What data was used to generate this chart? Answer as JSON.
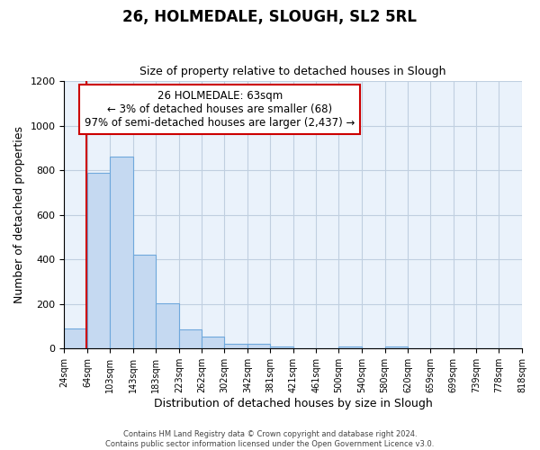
{
  "title1": "26, HOLMEDALE, SLOUGH, SL2 5RL",
  "title2": "Size of property relative to detached houses in Slough",
  "xlabel": "Distribution of detached houses by size in Slough",
  "ylabel": "Number of detached properties",
  "bar_values": [
    90,
    790,
    860,
    420,
    205,
    85,
    55,
    20,
    20,
    10,
    0,
    0,
    10,
    0,
    10,
    0,
    0,
    0,
    0,
    0
  ],
  "bar_left_edges": [
    24,
    64,
    103,
    143,
    183,
    223,
    262,
    302,
    342,
    381,
    421,
    461,
    500,
    540,
    580,
    620,
    659,
    699,
    739,
    778
  ],
  "bar_right_edges": [
    64,
    103,
    143,
    183,
    223,
    262,
    302,
    342,
    381,
    421,
    461,
    500,
    540,
    580,
    620,
    659,
    699,
    739,
    778,
    818
  ],
  "xtick_positions": [
    24,
    64,
    103,
    143,
    183,
    223,
    262,
    302,
    342,
    381,
    421,
    461,
    500,
    540,
    580,
    620,
    659,
    699,
    739,
    778,
    818
  ],
  "xtick_labels": [
    "24sqm",
    "64sqm",
    "103sqm",
    "143sqm",
    "183sqm",
    "223sqm",
    "262sqm",
    "302sqm",
    "342sqm",
    "381sqm",
    "421sqm",
    "461sqm",
    "500sqm",
    "540sqm",
    "580sqm",
    "620sqm",
    "659sqm",
    "699sqm",
    "739sqm",
    "778sqm",
    "818sqm"
  ],
  "bar_color": "#c5d9f1",
  "bar_edge_color": "#6fa8dc",
  "grid_color": "#c0cfe0",
  "background_color": "#eaf2fb",
  "ylim": [
    0,
    1200
  ],
  "yticks": [
    0,
    200,
    400,
    600,
    800,
    1000,
    1200
  ],
  "xlim": [
    24,
    818
  ],
  "redline_x": 63,
  "annotation_title": "26 HOLMEDALE: 63sqm",
  "annotation_line1": "← 3% of detached houses are smaller (68)",
  "annotation_line2": "97% of semi-detached houses are larger (2,437) →",
  "annotation_box_color": "#ffffff",
  "annotation_box_edge_color": "#cc0000",
  "footer1": "Contains HM Land Registry data © Crown copyright and database right 2024.",
  "footer2": "Contains public sector information licensed under the Open Government Licence v3.0."
}
